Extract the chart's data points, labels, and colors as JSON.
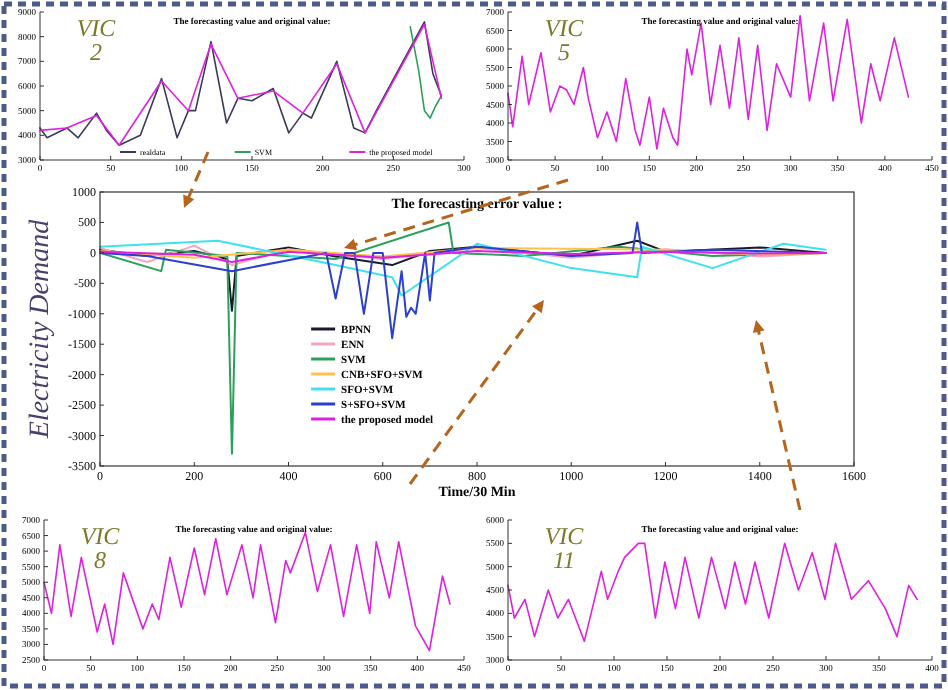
{
  "chart_data": [
    {
      "type": "line",
      "title": "The forecasting value and original value:",
      "annotations": [
        "VIC 2"
      ],
      "xlim": [
        0,
        300
      ],
      "xticks": [
        0,
        50,
        100,
        150,
        200,
        250,
        300
      ],
      "ylim": [
        3000,
        9000
      ],
      "yticks": [
        3000,
        4000,
        5000,
        6000,
        7000,
        8000,
        9000
      ],
      "legend": "bottom",
      "series": [
        {
          "name": "realdata",
          "color": "#3a3a5a",
          "x": [
            0,
            5,
            19,
            27,
            40,
            47,
            56,
            71,
            86,
            97,
            105,
            110,
            121,
            132,
            140,
            150,
            165,
            176,
            186,
            192,
            210,
            222,
            230,
            238,
            272,
            278,
            284
          ],
          "values": [
            4300,
            3900,
            4300,
            3900,
            4900,
            4200,
            3600,
            4000,
            6300,
            3900,
            5000,
            5000,
            7800,
            4500,
            5500,
            5400,
            5900,
            4100,
            4900,
            4700,
            7000,
            4300,
            4100,
            5000,
            8600,
            6500,
            5600
          ]
        },
        {
          "name": "SVM",
          "color": "#2ca05a",
          "x": [
            262,
            268,
            272,
            276,
            280,
            284
          ],
          "values": [
            8400,
            6600,
            5000,
            4700,
            5200,
            5600
          ]
        },
        {
          "name": "the proposed model",
          "color": "#e020e0",
          "x": [
            0,
            19,
            40,
            56,
            86,
            105,
            121,
            140,
            165,
            186,
            210,
            230,
            272,
            284
          ],
          "values": [
            4200,
            4300,
            4800,
            3600,
            6200,
            5000,
            7700,
            5500,
            5800,
            4900,
            6900,
            4100,
            8500,
            5500
          ]
        }
      ]
    },
    {
      "type": "line",
      "title": "The forecasting value and original value:",
      "annotations": [
        "VIC 5"
      ],
      "xlim": [
        0,
        450
      ],
      "xticks": [
        0,
        50,
        100,
        150,
        200,
        250,
        300,
        350,
        400,
        450
      ],
      "ylim": [
        3000,
        7000
      ],
      "yticks": [
        3000,
        3500,
        4000,
        4500,
        5000,
        5500,
        6000,
        6500,
        7000
      ],
      "series": [
        {
          "color": "#e020e0",
          "x": [
            0,
            5,
            15,
            22,
            35,
            45,
            55,
            62,
            70,
            80,
            85,
            95,
            105,
            115,
            125,
            135,
            140,
            150,
            158,
            165,
            175,
            180,
            190,
            195,
            205,
            215,
            225,
            235,
            245,
            255,
            265,
            275,
            285,
            300,
            310,
            320,
            335,
            345,
            360,
            375,
            385,
            395,
            410,
            425
          ],
          "values": [
            4800,
            3900,
            5800,
            4500,
            5900,
            4300,
            5000,
            4900,
            4500,
            5500,
            4700,
            3600,
            4300,
            3500,
            5200,
            3800,
            3400,
            4700,
            3300,
            4400,
            3600,
            3400,
            6000,
            5300,
            6700,
            4500,
            6100,
            4400,
            6300,
            4100,
            6100,
            3800,
            5600,
            4700,
            6900,
            4600,
            6700,
            4600,
            6800,
            4000,
            5600,
            4600,
            6300,
            4700
          ]
        }
      ]
    },
    {
      "type": "line",
      "title": "The forecasting error value :",
      "xlabel": "Time/30 Min",
      "ylabel": "Electricity Demand",
      "xlim": [
        0,
        1600
      ],
      "xticks": [
        0,
        200,
        400,
        600,
        800,
        1000,
        1200,
        1400,
        1600
      ],
      "ylim": [
        -3500,
        1000
      ],
      "yticks": [
        -3500,
        -3000,
        -2500,
        -2000,
        -1500,
        -1000,
        -500,
        0,
        500,
        1000
      ],
      "legend": "bottom left",
      "series": [
        {
          "name": "BPNN",
          "color": "#1a1a2e",
          "x": [
            0,
            100,
            200,
            270,
            280,
            290,
            400,
            500,
            620,
            700,
            800,
            1000,
            1140,
            1200,
            1400,
            1540
          ],
          "values": [
            50,
            -50,
            30,
            -100,
            -950,
            -50,
            90,
            -60,
            -200,
            30,
            100,
            -50,
            200,
            20,
            90,
            0
          ]
        },
        {
          "name": "ENN",
          "color": "#f4a6c0",
          "x": [
            0,
            100,
            200,
            280,
            400,
            600,
            800,
            1000,
            1200,
            1400,
            1540
          ],
          "values": [
            80,
            -150,
            120,
            -200,
            60,
            -100,
            80,
            -80,
            60,
            -60,
            0
          ]
        },
        {
          "name": "SVM",
          "color": "#2ca05a",
          "x": [
            0,
            130,
            140,
            270,
            280,
            290,
            500,
            740,
            750,
            900,
            1100,
            1300,
            1540
          ],
          "values": [
            0,
            -300,
            50,
            -50,
            -3300,
            0,
            -100,
            500,
            0,
            -50,
            100,
            -50,
            0
          ]
        },
        {
          "name": "CNB+SFO+SVM",
          "color": "#ffc04d",
          "x": [
            0,
            200,
            400,
            600,
            800,
            1000,
            1200,
            1400,
            1540
          ],
          "values": [
            30,
            -80,
            50,
            -60,
            80,
            70,
            50,
            -30,
            0
          ]
        },
        {
          "name": "SFO+SVM",
          "color": "#40e0f0",
          "x": [
            0,
            250,
            500,
            620,
            640,
            800,
            1000,
            1140,
            1150,
            1300,
            1450,
            1540
          ],
          "values": [
            100,
            200,
            -200,
            -400,
            -700,
            150,
            -250,
            -400,
            100,
            -250,
            150,
            50
          ]
        },
        {
          "name": "S+SFO+SVM",
          "color": "#2b3fd1",
          "x": [
            0,
            100,
            280,
            480,
            500,
            520,
            540,
            560,
            580,
            600,
            620,
            640,
            650,
            660,
            670,
            690,
            700,
            710,
            800,
            1000,
            1130,
            1140,
            1150,
            1300,
            1540
          ],
          "values": [
            0,
            -50,
            -300,
            0,
            -750,
            0,
            0,
            -1000,
            0,
            0,
            -1400,
            -300,
            -1050,
            -900,
            -1000,
            0,
            -780,
            0,
            100,
            -50,
            0,
            500,
            0,
            50,
            0
          ]
        },
        {
          "name": "the proposed model",
          "color": "#e020e0",
          "x": [
            0,
            200,
            280,
            400,
            600,
            800,
            1000,
            1200,
            1400,
            1540
          ],
          "values": [
            20,
            -30,
            -150,
            20,
            -80,
            30,
            -20,
            20,
            -10,
            0
          ]
        }
      ]
    },
    {
      "type": "line",
      "title": "The forecasting value and original value:",
      "annotations": [
        "VIC 8"
      ],
      "xlim": [
        0,
        450
      ],
      "xticks": [
        0,
        50,
        100,
        150,
        200,
        250,
        300,
        350,
        400,
        450
      ],
      "ylim": [
        2500,
        7000
      ],
      "yticks": [
        2500,
        3000,
        3500,
        4000,
        4500,
        5000,
        5500,
        6000,
        6500,
        7000
      ],
      "series": [
        {
          "color": "#e020e0",
          "x": [
            0,
            8,
            17,
            29,
            40,
            57,
            65,
            74,
            85,
            106,
            116,
            123,
            135,
            147,
            161,
            172,
            184,
            196,
            212,
            224,
            232,
            248,
            259,
            264,
            280,
            293,
            307,
            321,
            335,
            349,
            356,
            370,
            380,
            398,
            413,
            427,
            435
          ],
          "values": [
            5000,
            4000,
            6200,
            3900,
            5800,
            3400,
            4300,
            3000,
            5300,
            3500,
            4300,
            3800,
            5800,
            4200,
            6100,
            4600,
            6400,
            4600,
            6200,
            4500,
            6200,
            3700,
            5700,
            5300,
            6600,
            4700,
            6200,
            3900,
            6200,
            4000,
            6300,
            4500,
            6300,
            3600,
            2800,
            5200,
            4300
          ]
        }
      ]
    },
    {
      "type": "line",
      "title": "The forecasting value and original value:",
      "annotations": [
        "VIC 11"
      ],
      "xlim": [
        0,
        400
      ],
      "xticks": [
        0,
        50,
        100,
        150,
        200,
        250,
        300,
        350,
        400
      ],
      "ylim": [
        3000,
        6000
      ],
      "yticks": [
        3000,
        3500,
        4000,
        4500,
        5000,
        5500,
        6000
      ],
      "series": [
        {
          "color": "#e020e0",
          "x": [
            0,
            6,
            16,
            25,
            38,
            47,
            57,
            72,
            88,
            94,
            104,
            110,
            123,
            129,
            139,
            148,
            158,
            167,
            180,
            192,
            205,
            214,
            224,
            233,
            246,
            261,
            274,
            287,
            299,
            309,
            324,
            340,
            356,
            367,
            378,
            386
          ],
          "values": [
            4600,
            3900,
            4300,
            3500,
            4500,
            3900,
            4300,
            3400,
            4900,
            4300,
            4900,
            5200,
            5500,
            5500,
            3900,
            5100,
            4100,
            5200,
            3900,
            5200,
            4100,
            5100,
            4200,
            5100,
            3900,
            5500,
            4500,
            5300,
            4300,
            5500,
            4300,
            4700,
            4100,
            3500,
            4600,
            4300
          ]
        }
      ]
    }
  ]
}
